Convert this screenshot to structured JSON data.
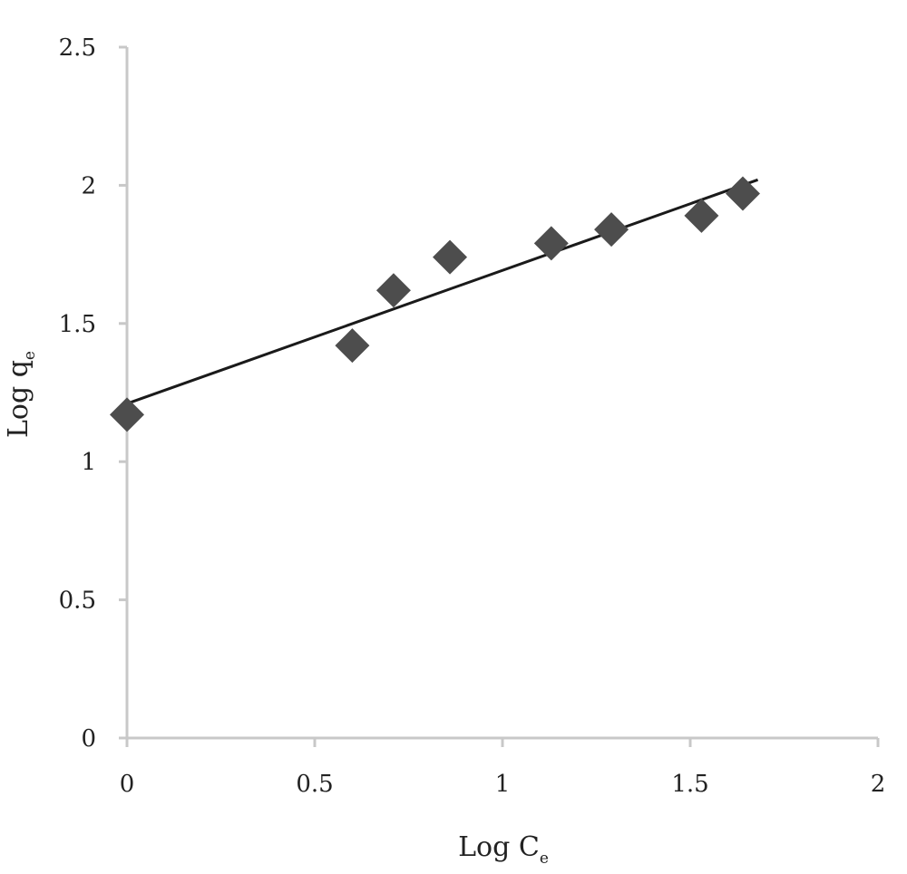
{
  "chart_data": {
    "type": "scatter",
    "title": "",
    "xlabel": {
      "base": "Log C",
      "sub": "e"
    },
    "ylabel": {
      "base": "Log q",
      "sub": "e"
    },
    "xlim": [
      0,
      2
    ],
    "ylim": [
      0,
      2.5
    ],
    "x_ticks": [
      0,
      0.5,
      1,
      1.5,
      2
    ],
    "y_ticks": [
      0,
      0.5,
      1,
      1.5,
      2,
      2.5
    ],
    "x_tick_labels": [
      "0",
      "0.5",
      "1",
      "1.5",
      "2"
    ],
    "y_tick_labels": [
      "0",
      "0.5",
      "1",
      "1.5",
      "2",
      "2.5"
    ],
    "grid": false,
    "legend": "none",
    "series": [
      {
        "marker": "diamond",
        "color": "#4d4d4d",
        "points": [
          {
            "x": 0.0,
            "y": 1.17
          },
          {
            "x": 0.6,
            "y": 1.42
          },
          {
            "x": 0.71,
            "y": 1.62
          },
          {
            "x": 0.86,
            "y": 1.74
          },
          {
            "x": 1.13,
            "y": 1.79
          },
          {
            "x": 1.29,
            "y": 1.84
          },
          {
            "x": 1.53,
            "y": 1.89
          },
          {
            "x": 1.64,
            "y": 1.97
          }
        ]
      }
    ],
    "trendline": {
      "type": "linear",
      "color": "#1a1a1a",
      "from": {
        "x": 0.0,
        "y": 1.21
      },
      "to": {
        "x": 1.68,
        "y": 2.02
      }
    },
    "axis_color": "#c8c8c8"
  }
}
